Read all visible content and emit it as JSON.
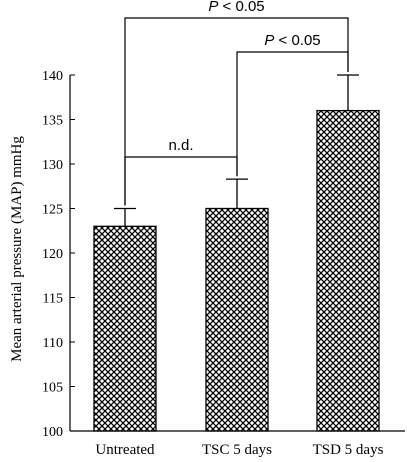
{
  "chart_data": {
    "type": "bar",
    "categories": [
      "Untreated",
      "TSC 5 days",
      "TSD 5 days"
    ],
    "values": [
      123,
      125,
      136
    ],
    "errors": [
      2,
      3.3,
      4
    ],
    "ylabel": "Mean arterial pressure (MAP) mmHg",
    "xlabel": "",
    "ylim": [
      100,
      140
    ],
    "yticks": [
      "100",
      "105",
      "110",
      "115",
      "120",
      "125",
      "130",
      "135",
      "140"
    ],
    "bar_pattern": "crosshatch",
    "grid": false,
    "comparisons": [
      {
        "from": 0,
        "to": 1,
        "label": "n.d."
      },
      {
        "from": 1,
        "to": 2,
        "label_italic": "P",
        "label": "< 0.05"
      },
      {
        "from": 0,
        "to": 2,
        "label_italic": "P",
        "label": "< 0.05"
      }
    ]
  }
}
